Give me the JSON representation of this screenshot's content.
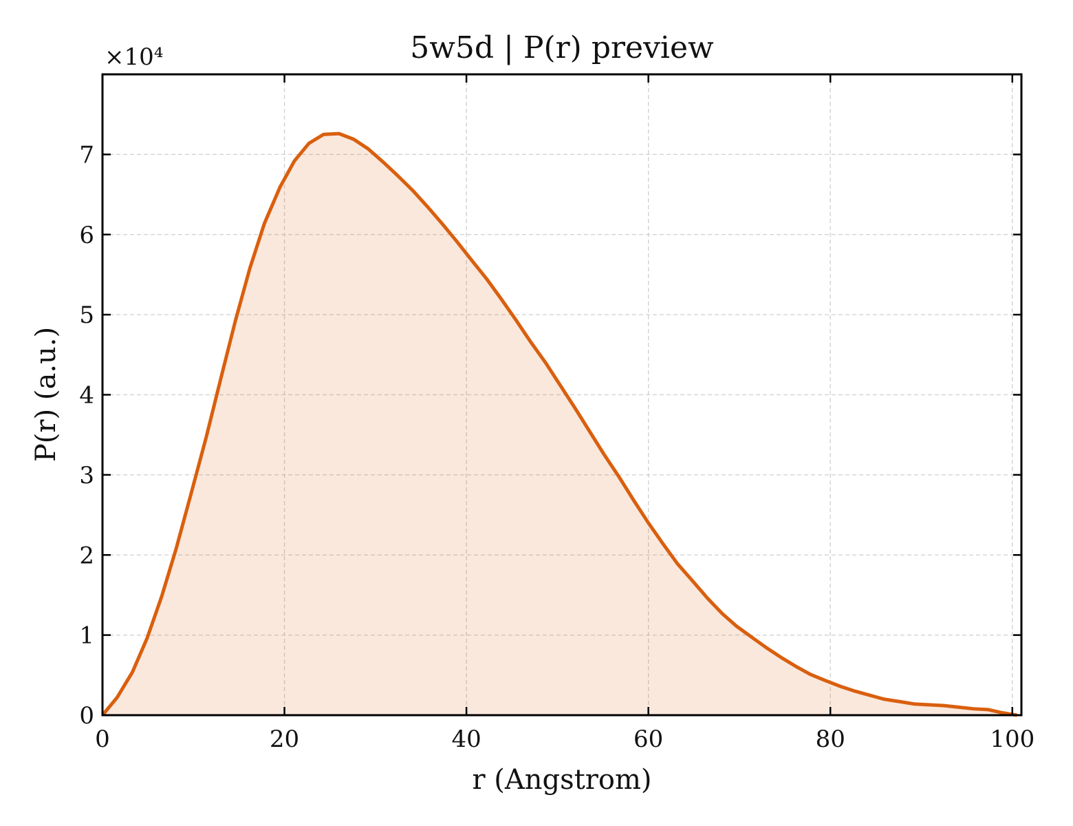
{
  "colors": {
    "line": "#D95F0E",
    "fill": "#D95F0E",
    "background": "#ffffff"
  },
  "chart_data": {
    "type": "area",
    "title": "5w5d | P(r) preview",
    "xlabel": "r (Angstrom)",
    "ylabel": "P(r) (a.u.)",
    "y_multiplier": "×10⁴",
    "xlim": [
      0,
      101
    ],
    "ylim": [
      0,
      8
    ],
    "grid": true,
    "x_ticks": [
      "0",
      "20",
      "40",
      "60",
      "80",
      "100"
    ],
    "y_ticks": [
      "0",
      "1",
      "2",
      "3",
      "4",
      "5",
      "6",
      "7"
    ],
    "series": [
      {
        "x": [
          0,
          1.6,
          3.3,
          4.9,
          6.5,
          8.1,
          9.7,
          11.4,
          13.0,
          14.6,
          16.2,
          17.8,
          19.5,
          21.1,
          22.7,
          24.3,
          26.0,
          27.6,
          29.2,
          30.8,
          32.4,
          34.1,
          35.7,
          37.3,
          38.9,
          40.5,
          42.2,
          43.8,
          45.4,
          47.0,
          48.7,
          50.3,
          51.9,
          53.5,
          55.1,
          56.8,
          58.4,
          60.0,
          61.6,
          63.2,
          64.9,
          66.5,
          68.1,
          69.7,
          71.4,
          73.0,
          74.6,
          76.2,
          77.8,
          79.5,
          81.1,
          82.7,
          84.3,
          85.9,
          87.6,
          89.2,
          90.8,
          92.4,
          94.1,
          95.7,
          97.3,
          98.9,
          100.5
        ],
        "y": [
          0.0,
          0.22,
          0.54,
          0.96,
          1.48,
          2.08,
          2.75,
          3.47,
          4.2,
          4.92,
          5.58,
          6.14,
          6.59,
          6.92,
          7.14,
          7.25,
          7.26,
          7.19,
          7.07,
          6.91,
          6.74,
          6.55,
          6.35,
          6.14,
          5.92,
          5.69,
          5.45,
          5.2,
          4.94,
          4.67,
          4.4,
          4.12,
          3.84,
          3.55,
          3.26,
          2.97,
          2.68,
          2.4,
          2.14,
          1.89,
          1.67,
          1.46,
          1.27,
          1.11,
          0.97,
          0.84,
          0.72,
          0.61,
          0.51,
          0.43,
          0.36,
          0.3,
          0.25,
          0.2,
          0.17,
          0.14,
          0.13,
          0.12,
          0.1,
          0.08,
          0.07,
          0.03,
          0.0
        ]
      }
    ]
  }
}
